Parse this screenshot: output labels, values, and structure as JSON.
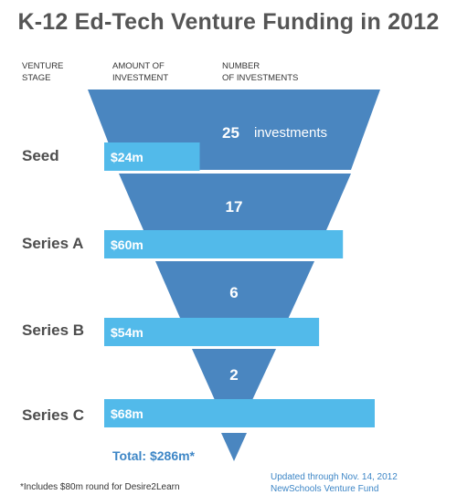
{
  "title": "K-12 Ed-Tech Venture Funding in 2012",
  "headers": {
    "stage": "VENTURE\nSTAGE",
    "amount": "AMOUNT OF\nINVESTMENT",
    "count": "NUMBER\nOF INVESTMENTS"
  },
  "colors": {
    "funnel": "#4a86c0",
    "amount_bar": "#52baea",
    "accent_text": "#3d86c6"
  },
  "chart_data": {
    "type": "bar",
    "title": "K-12 Ed-Tech Venture Funding in 2012",
    "categories": [
      "Seed",
      "Series A",
      "Series B",
      "Series C"
    ],
    "series": [
      {
        "name": "AMOUNT OF INVESTMENT",
        "unit": "$m",
        "values": [
          24,
          60,
          54,
          68
        ],
        "labels": [
          "$24m",
          "$60m",
          "$54m",
          "$68m"
        ]
      },
      {
        "name": "NUMBER OF INVESTMENTS",
        "values": [
          25,
          17,
          6,
          2
        ],
        "labels": [
          "25",
          "17",
          "6",
          "2"
        ]
      }
    ],
    "first_count_suffix": "investments"
  },
  "total_label": "Total: $286m*",
  "footnote": "*Includes $80m round for Desire2Learn",
  "source_line1": "Updated through Nov. 14, 2012",
  "source_line2": "NewSchools Venture Fund"
}
